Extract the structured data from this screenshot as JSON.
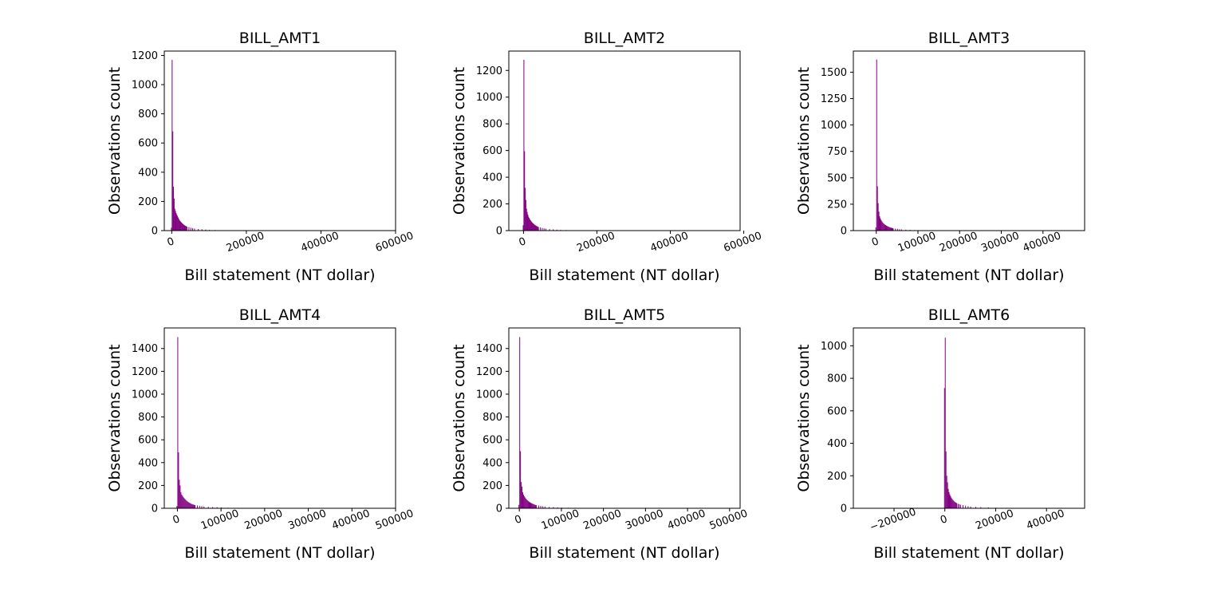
{
  "chart_data": [
    {
      "type": "bar",
      "title": "BILL_AMT1",
      "xlabel": "Bill statement (NT dollar)",
      "ylabel": "Observations count",
      "xlim": [
        -20000,
        600000
      ],
      "ylim": [
        0,
        1230
      ],
      "xticks": [
        0,
        200000,
        400000,
        600000
      ],
      "xtick_labels": [
        "0",
        "200000",
        "400000",
        "600000"
      ],
      "yticks": [
        0,
        200,
        400,
        600,
        800,
        1000,
        1200
      ],
      "ytick_labels": [
        "0",
        "200",
        "400",
        "600",
        "800",
        "1000",
        "1200"
      ],
      "bin_width": 1800,
      "bins_x": [
        -2000,
        0,
        1800,
        3600,
        5400,
        7200,
        9000,
        10800,
        12600,
        14400,
        16200,
        18000,
        19800,
        21600,
        23400,
        25200,
        27000,
        28800,
        30600,
        32400,
        34200,
        36000,
        37800,
        39600,
        45000,
        50000,
        55000,
        60000,
        70000,
        80000,
        90000,
        100000,
        115000,
        130000,
        160000
      ],
      "values": [
        20,
        1170,
        680,
        300,
        220,
        150,
        135,
        120,
        110,
        100,
        90,
        80,
        72,
        65,
        60,
        55,
        50,
        46,
        42,
        38,
        35,
        32,
        30,
        27,
        25,
        20,
        17,
        14,
        11,
        9,
        7,
        5,
        4,
        3,
        2
      ],
      "grid": false,
      "color": "#800080"
    },
    {
      "type": "bar",
      "title": "BILL_AMT2",
      "xlabel": "Bill statement (NT dollar)",
      "ylabel": "Observations count",
      "xlim": [
        -40000,
        590000
      ],
      "ylim": [
        0,
        1345
      ],
      "xticks": [
        0,
        200000,
        400000,
        600000
      ],
      "xtick_labels": [
        "0",
        "200000",
        "400000",
        "600000"
      ],
      "yticks": [
        0,
        200,
        400,
        600,
        800,
        1000,
        1200
      ],
      "ytick_labels": [
        "0",
        "200",
        "400",
        "600",
        "800",
        "1000",
        "1200"
      ],
      "bin_width": 1800,
      "bins_x": [
        -2000,
        0,
        1800,
        3600,
        5400,
        7200,
        9000,
        10800,
        12600,
        14400,
        16200,
        18000,
        19800,
        21600,
        23400,
        25200,
        27000,
        28800,
        30600,
        32400,
        34200,
        36000,
        37800,
        39600,
        45000,
        50000,
        55000,
        60000,
        70000,
        80000,
        90000,
        100000,
        115000,
        130000,
        160000
      ],
      "values": [
        40,
        1280,
        595,
        320,
        230,
        165,
        140,
        120,
        105,
        95,
        85,
        78,
        70,
        64,
        58,
        54,
        49,
        45,
        41,
        38,
        35,
        32,
        29,
        27,
        24,
        20,
        17,
        14,
        11,
        9,
        7,
        5,
        4,
        3,
        2
      ],
      "grid": false,
      "color": "#800080"
    },
    {
      "type": "bar",
      "title": "BILL_AMT3",
      "xlabel": "Bill statement (NT dollar)",
      "ylabel": "Observations count",
      "xlim": [
        -55000,
        500000
      ],
      "ylim": [
        0,
        1700
      ],
      "xticks": [
        0,
        100000,
        200000,
        300000,
        400000
      ],
      "xtick_labels": [
        "0",
        "100000",
        "200000",
        "300000",
        "400000"
      ],
      "yticks": [
        0,
        250,
        500,
        750,
        1000,
        1250,
        1500
      ],
      "ytick_labels": [
        "0",
        "250",
        "500",
        "750",
        "1000",
        "1250",
        "1500"
      ],
      "bin_width": 1800,
      "bins_x": [
        -2000,
        0,
        1800,
        3600,
        5400,
        7200,
        9000,
        10800,
        12600,
        14400,
        16200,
        18000,
        19800,
        21600,
        23400,
        25200,
        27000,
        28800,
        30600,
        32400,
        34200,
        36000,
        37800,
        39600,
        45000,
        50000,
        55000,
        60000,
        70000,
        80000,
        90000,
        100000,
        115000,
        130000
      ],
      "values": [
        30,
        1620,
        420,
        260,
        180,
        135,
        115,
        100,
        88,
        78,
        70,
        63,
        57,
        52,
        47,
        43,
        39,
        36,
        33,
        30,
        28,
        26,
        24,
        22,
        19,
        16,
        13,
        11,
        9,
        7,
        5,
        4,
        3,
        2
      ],
      "grid": false,
      "color": "#800080"
    },
    {
      "type": "bar",
      "title": "BILL_AMT4",
      "xlabel": "Bill statement (NT dollar)",
      "ylabel": "Observations count",
      "xlim": [
        -30000,
        500000
      ],
      "ylim": [
        0,
        1580
      ],
      "xticks": [
        0,
        100000,
        200000,
        300000,
        400000,
        500000
      ],
      "xtick_labels": [
        "0",
        "100000",
        "200000",
        "300000",
        "400000",
        "500000"
      ],
      "yticks": [
        0,
        200,
        400,
        600,
        800,
        1000,
        1200,
        1400
      ],
      "ytick_labels": [
        "0",
        "200",
        "400",
        "600",
        "800",
        "1000",
        "1200",
        "1400"
      ],
      "bin_width": 1800,
      "bins_x": [
        -2000,
        0,
        1800,
        3600,
        5400,
        7200,
        9000,
        10800,
        12600,
        14400,
        16200,
        18000,
        19800,
        21600,
        23400,
        25200,
        27000,
        28800,
        30600,
        32400,
        34200,
        36000,
        37800,
        39600,
        45000,
        50000,
        55000,
        60000,
        70000,
        80000,
        90000,
        100000,
        115000,
        130000,
        160000,
        200000
      ],
      "values": [
        20,
        1500,
        490,
        250,
        200,
        140,
        120,
        110,
        100,
        90,
        82,
        75,
        68,
        62,
        57,
        52,
        48,
        44,
        40,
        37,
        34,
        32,
        30,
        28,
        25,
        22,
        19,
        16,
        13,
        11,
        9,
        7,
        5,
        4,
        3,
        2
      ],
      "grid": false,
      "color": "#800080"
    },
    {
      "type": "bar",
      "title": "BILL_AMT5",
      "xlabel": "Bill statement (NT dollar)",
      "ylabel": "Observations count",
      "xlim": [
        -25000,
        525000
      ],
      "ylim": [
        0,
        1580
      ],
      "xticks": [
        0,
        100000,
        200000,
        300000,
        400000,
        500000
      ],
      "xtick_labels": [
        "0",
        "100000",
        "200000",
        "300000",
        "400000",
        "500000"
      ],
      "yticks": [
        0,
        200,
        400,
        600,
        800,
        1000,
        1200,
        1400
      ],
      "ytick_labels": [
        "0",
        "200",
        "400",
        "600",
        "800",
        "1000",
        "1200",
        "1400"
      ],
      "bin_width": 1800,
      "bins_x": [
        -2000,
        0,
        1800,
        3600,
        5400,
        7200,
        9000,
        10800,
        12600,
        14400,
        16200,
        18000,
        19800,
        21600,
        23400,
        25200,
        27000,
        28800,
        30600,
        32400,
        34200,
        36000,
        37800,
        39600,
        45000,
        50000,
        55000,
        60000,
        70000,
        80000,
        90000,
        100000,
        115000,
        130000,
        160000,
        200000
      ],
      "values": [
        30,
        1500,
        500,
        230,
        190,
        140,
        120,
        105,
        95,
        86,
        78,
        71,
        65,
        60,
        55,
        50,
        46,
        43,
        40,
        37,
        34,
        31,
        29,
        27,
        24,
        21,
        18,
        15,
        12,
        10,
        8,
        6,
        5,
        4,
        3,
        2
      ],
      "grid": false,
      "color": "#800080"
    },
    {
      "type": "bar",
      "title": "BILL_AMT6",
      "xlabel": "Bill statement (NT dollar)",
      "ylabel": "Observations count",
      "xlim": [
        -360000,
        550000
      ],
      "ylim": [
        0,
        1110
      ],
      "xticks": [
        -200000,
        0,
        200000,
        400000
      ],
      "xtick_labels": [
        "−200000",
        "0",
        "200000",
        "400000"
      ],
      "yticks": [
        0,
        200,
        400,
        600,
        800,
        1000
      ],
      "ytick_labels": [
        "0",
        "200",
        "400",
        "600",
        "800",
        "1000"
      ],
      "bin_width": 3000,
      "bins_x": [
        -3000,
        0,
        3000,
        6000,
        9000,
        12000,
        15000,
        18000,
        21000,
        24000,
        27000,
        30000,
        33000,
        36000,
        39000,
        42000,
        45000,
        50000,
        55000,
        60000,
        70000,
        80000,
        90000,
        100000,
        120000,
        140000,
        170000,
        200000,
        240000,
        300000
      ],
      "values": [
        740,
        1050,
        350,
        200,
        160,
        120,
        100,
        85,
        75,
        66,
        58,
        52,
        47,
        42,
        38,
        35,
        32,
        28,
        25,
        22,
        19,
        16,
        13,
        11,
        9,
        7,
        5,
        4,
        3,
        2
      ],
      "grid": false,
      "color": "#800080"
    }
  ]
}
